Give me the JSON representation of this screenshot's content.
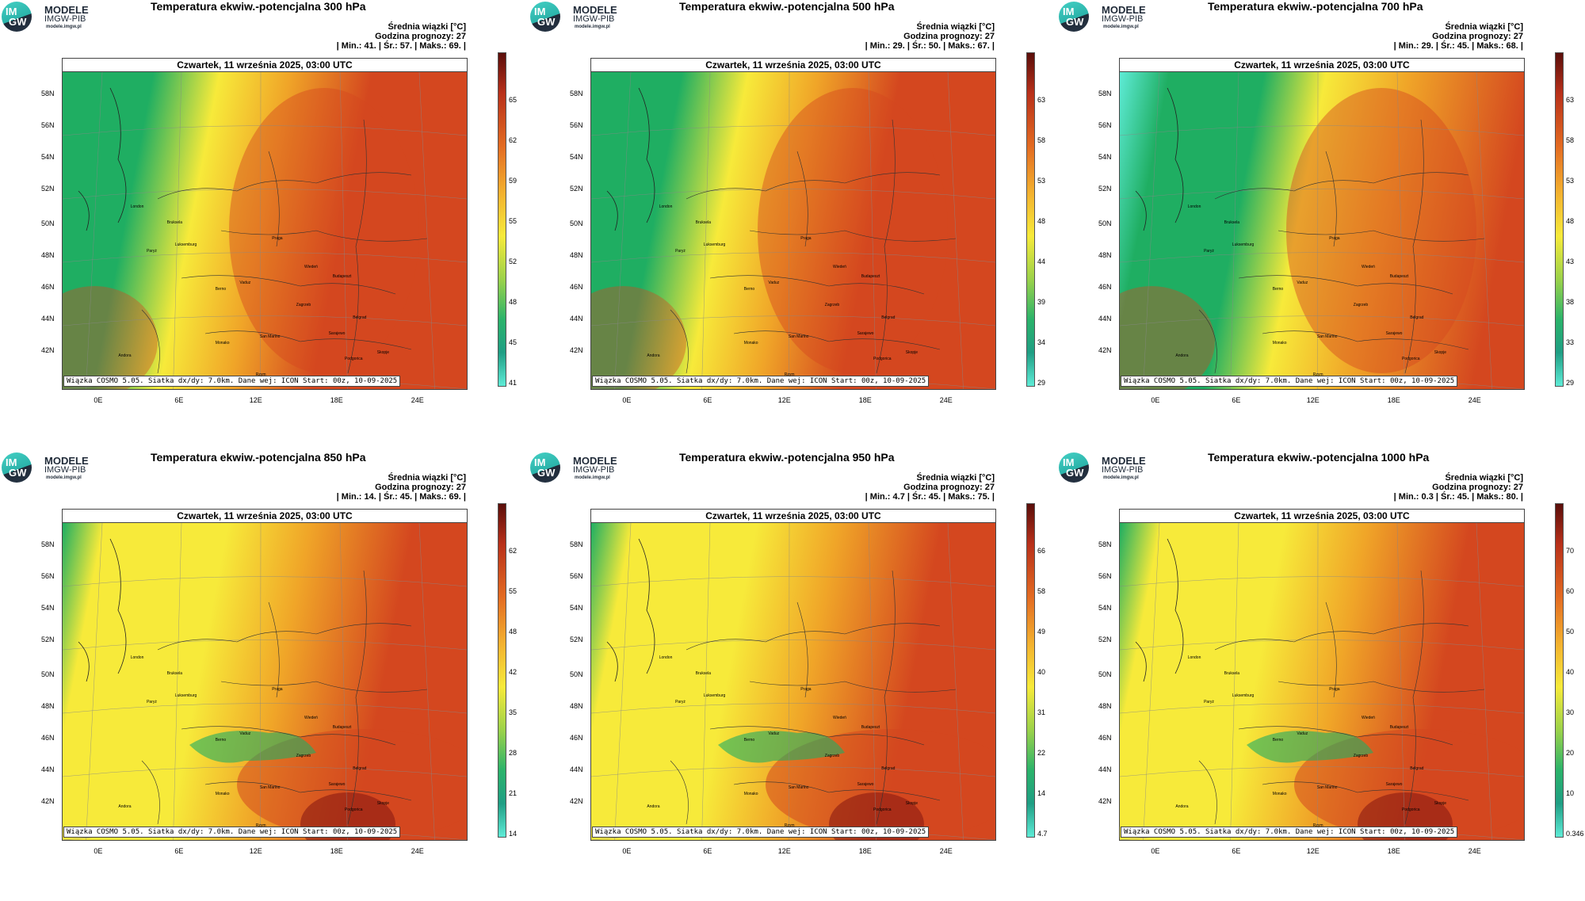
{
  "logo": {
    "circle_top": "IM",
    "circle_bottom": "GW",
    "name": "MODELE",
    "sub": "IMGW-PIB",
    "url": "modele.imgw.pl"
  },
  "common": {
    "date": "Czwartek, 11 września 2025, 03:00 UTC",
    "legend_title": "Średnia wiązki [°C]",
    "forecast_hour": "Godzina prognozy: 27",
    "footer": "Wiązka COSMO 5.05. Siatka dx/dy: 7.0km. Dane wej: ICON Start: 00z, 10-09-2025",
    "lat_labels": [
      "58N",
      "56N",
      "54N",
      "52N",
      "50N",
      "48N",
      "46N",
      "44N",
      "42N"
    ],
    "lon_labels": [
      "0E",
      "6E",
      "12E",
      "18E",
      "24E"
    ],
    "cities": [
      "London",
      "Bruksela",
      "Paryż",
      "Luksemburg",
      "Praga",
      "Wiedeń",
      "Budapeszt",
      "Berno",
      "Vaduz",
      "Zagrzeb",
      "Belgrad",
      "San Marino",
      "Monako",
      "Sarajewo",
      "Andora",
      "Podgorica",
      "Skopje",
      "Rzym"
    ]
  },
  "colors": {
    "green": "#1fae62",
    "yellow": "#f7ea3a",
    "orange": "#f0a528",
    "red": "#d4471f",
    "darkred": "#8a1a12",
    "cyan": "#5eebd6"
  },
  "panels": [
    {
      "title": "Temperatura ekwiw.-potencjalna 300 hPa",
      "stats": "| Min.:      41. | Śr.:      57. | Maks.:      69. |",
      "ticks": [
        "65",
        "62",
        "59",
        "55",
        "52",
        "48",
        "45",
        "41"
      ],
      "pattern": "west-green-east-red"
    },
    {
      "title": "Temperatura ekwiw.-potencjalna 500 hPa",
      "stats": "| Min.:      29. | Śr.:      50. | Maks.:      67. |",
      "ticks": [
        "63",
        "58",
        "53",
        "48",
        "44",
        "39",
        "34",
        "29"
      ],
      "pattern": "west-green-east-red"
    },
    {
      "title": "Temperatura ekwiw.-potencjalna 700 hPa",
      "stats": "| Min.:      29. | Śr.:      45. | Maks.:      68. |",
      "ticks": [
        "63",
        "58",
        "53",
        "48",
        "43",
        "38",
        "33",
        "29"
      ],
      "pattern": "west-green-strong"
    },
    {
      "title": "Temperatura ekwiw.-potencjalna 850 hPa",
      "stats": "| Min.:      14. | Śr.:      45. | Maks.:      69. |",
      "ticks": [
        "62",
        "55",
        "48",
        "42",
        "35",
        "28",
        "21",
        "14"
      ],
      "pattern": "lowlevel-alps"
    },
    {
      "title": "Temperatura ekwiw.-potencjalna 950 hPa",
      "stats": "| Min.:      4.7 | Śr.:      45. | Maks.:      75. |",
      "ticks": [
        "66",
        "58",
        "49",
        "40",
        "31",
        "22",
        "14",
        "4.7"
      ],
      "pattern": "lowlevel-alps"
    },
    {
      "title": "Temperatura ekwiw.-potencjalna 1000 hPa",
      "stats": "| Min.:      0.3 | Śr.:      45. | Maks.:      80. |",
      "ticks": [
        "70",
        "60",
        "50",
        "40",
        "30",
        "20",
        "10",
        "0.346"
      ],
      "pattern": "lowlevel-alps"
    }
  ]
}
